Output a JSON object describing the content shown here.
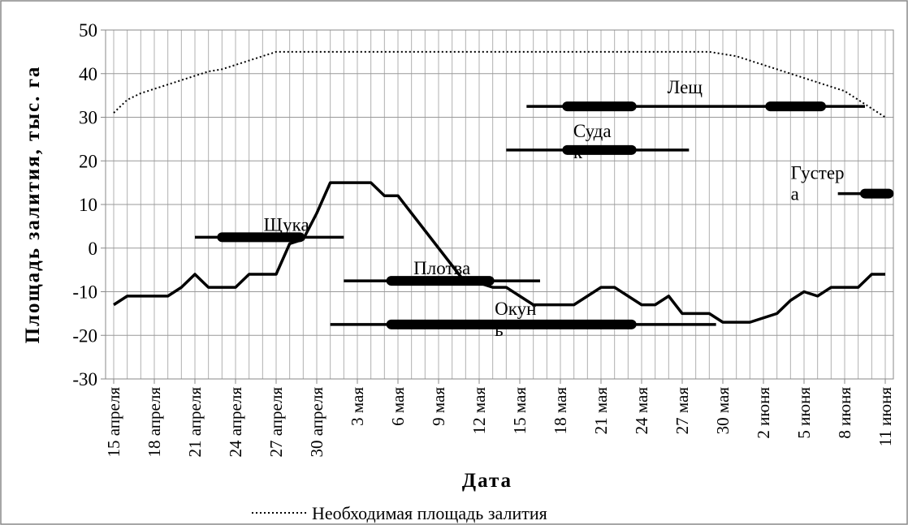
{
  "chart_data": {
    "type": "line",
    "y_label": "Площадь залития, тыс. га",
    "x_label": "Дата",
    "xlim": [
      -0.6,
      57.6
    ],
    "ylim": [
      -30,
      50
    ],
    "yticks": [
      -30,
      -20,
      -10,
      0,
      10,
      20,
      30,
      40,
      50
    ],
    "xticks": [
      {
        "value": 0,
        "label": "15 апреля"
      },
      {
        "value": 3,
        "label": "18 апреля"
      },
      {
        "value": 6,
        "label": "21 апреля"
      },
      {
        "value": 9,
        "label": "24 апреля"
      },
      {
        "value": 12,
        "label": "27 апреля"
      },
      {
        "value": 15,
        "label": "30 апреля"
      },
      {
        "value": 18,
        "label": "3 мая"
      },
      {
        "value": 21,
        "label": "6 мая"
      },
      {
        "value": 24,
        "label": "9 мая"
      },
      {
        "value": 27,
        "label": "12 мая"
      },
      {
        "value": 30,
        "label": "15 мая"
      },
      {
        "value": 33,
        "label": "18 мая"
      },
      {
        "value": 36,
        "label": "21 мая"
      },
      {
        "value": 39,
        "label": "24 мая"
      },
      {
        "value": 42,
        "label": "27 мая"
      },
      {
        "value": 45,
        "label": "30 мая"
      },
      {
        "value": 48,
        "label": "2 июня"
      },
      {
        "value": 51,
        "label": "5 июня"
      },
      {
        "value": 54,
        "label": "8 июня"
      },
      {
        "value": 57,
        "label": "11 июня"
      }
    ],
    "grid": true,
    "x": [
      0,
      1,
      2,
      3,
      4,
      5,
      6,
      7,
      8,
      9,
      10,
      11,
      12,
      13,
      14,
      15,
      16,
      17,
      18,
      19,
      20,
      21,
      22,
      23,
      24,
      25,
      26,
      27,
      28,
      29,
      30,
      31,
      32,
      33,
      34,
      35,
      36,
      37,
      38,
      39,
      40,
      41,
      42,
      43,
      44,
      45,
      46,
      47,
      48,
      49,
      50,
      51,
      52,
      53,
      54,
      55,
      56,
      57
    ],
    "series": [
      {
        "color": "#000000",
        "style": "solid",
        "values": [
          -13,
          -11,
          -11,
          -11,
          -11,
          -9,
          -6,
          -9,
          -9,
          -9,
          -6,
          -6,
          -6,
          1,
          2,
          8,
          15,
          15,
          15,
          15,
          12,
          12,
          8,
          4,
          0,
          -4,
          -8,
          -8,
          -9,
          -9,
          -11,
          -13,
          -13,
          -13,
          -13,
          -11,
          -9,
          -9,
          -11,
          -13,
          -13,
          -11,
          -15,
          -15,
          -15,
          -17,
          -17,
          -17,
          -16,
          -15,
          -12,
          -10,
          -11,
          -9,
          -9,
          -9,
          -6,
          -6
        ]
      },
      {
        "name": "Необходимая площадь залития",
        "color": "#000000",
        "style": "dotted",
        "values": [
          31,
          34,
          35.5,
          36.5,
          37.5,
          38.5,
          39.5,
          40.5,
          41,
          42,
          43,
          44,
          45,
          45,
          45,
          45,
          45,
          45,
          45,
          45,
          45,
          45,
          45,
          45,
          45,
          45,
          45,
          45,
          45,
          45,
          45,
          45,
          45,
          45,
          45,
          45,
          45,
          45,
          45,
          45,
          45,
          45,
          45,
          45,
          45,
          44.5,
          44,
          43,
          42,
          41,
          40,
          39,
          38,
          37,
          36,
          34,
          32,
          30
        ]
      }
    ],
    "fish": [
      {
        "label_lines": [
          "Щука"
        ],
        "y": 2.5,
        "range": [
          6,
          17
        ],
        "peaks": [
          [
            8,
            14
          ]
        ]
      },
      {
        "label_lines": [
          "Плотва"
        ],
        "y": -7.5,
        "range": [
          17,
          31.5
        ],
        "peaks": [
          [
            20.5,
            28
          ]
        ]
      },
      {
        "label_lines": [
          "Окун",
          "ь"
        ],
        "y": -17.5,
        "range": [
          16,
          44.5
        ],
        "peaks": [
          [
            20.5,
            38.5
          ]
        ]
      },
      {
        "label_lines": [
          "Суда",
          "к"
        ],
        "y": 22.5,
        "range": [
          29,
          42.5
        ],
        "peaks": [
          [
            33.5,
            38.5
          ]
        ]
      },
      {
        "label_lines": [
          "Лещ"
        ],
        "y": 32.5,
        "range": [
          30.5,
          55.5
        ],
        "peaks": [
          [
            33.5,
            38.5
          ],
          [
            48.5,
            52.5
          ]
        ]
      },
      {
        "label_lines": [
          "Густер",
          "а"
        ],
        "y": 12.5,
        "range": [
          53.5,
          57.5
        ],
        "peaks": [
          [
            55.5,
            57.5
          ]
        ]
      }
    ]
  }
}
